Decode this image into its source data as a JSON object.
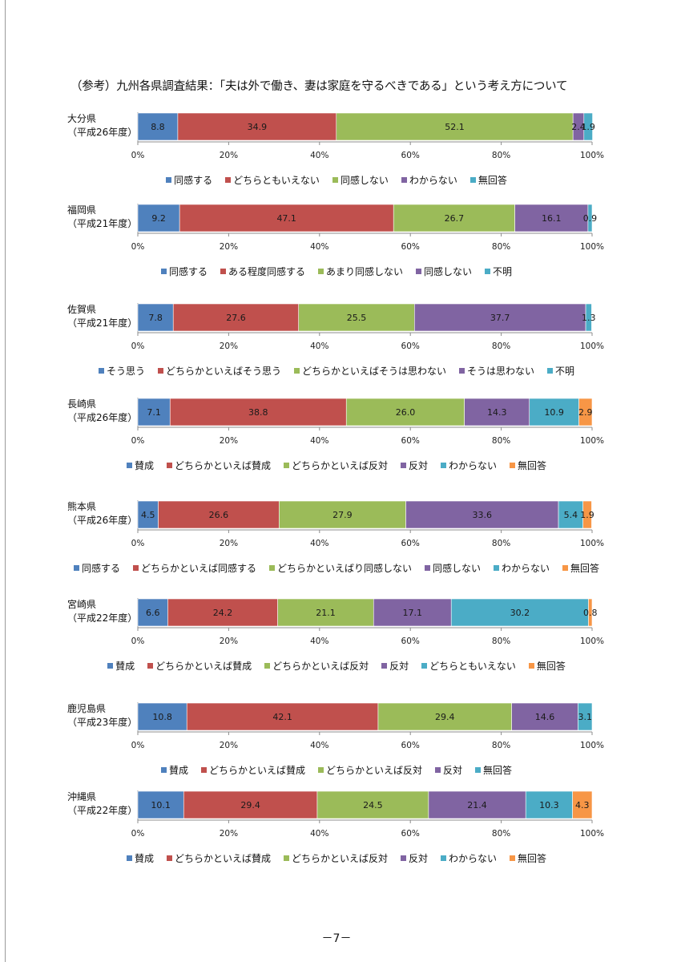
{
  "page": {
    "title": "（参考）九州各県調査結果：「夫は外で働き、妻は家庭を守るべきである」という考え方について",
    "page_number": "－7－"
  },
  "colors": {
    "c1": "#4f81bd",
    "c2": "#c0504d",
    "c3": "#9bbb59",
    "c4": "#8064a2",
    "c5": "#4bacc6",
    "c6": "#f79646"
  },
  "axis": {
    "ticks": [
      "0%",
      "20%",
      "40%",
      "60%",
      "80%",
      "100%"
    ],
    "tick_values": [
      0,
      20,
      40,
      60,
      80,
      100
    ]
  },
  "chart_data": [
    {
      "type": "bar",
      "orientation": "horizontal",
      "stacked": true,
      "prefecture": "大分県",
      "year": "（平成26年度）",
      "series": [
        {
          "name": "同感する",
          "value": 8.8,
          "label": "8.8",
          "color": "#4f81bd"
        },
        {
          "name": "どちらともいえない",
          "value": 34.9,
          "label": "34.9",
          "color": "#c0504d"
        },
        {
          "name": "同感しない",
          "value": 52.1,
          "label": "52.1",
          "color": "#9bbb59"
        },
        {
          "name": "わからない",
          "value": 2.4,
          "label": "2.4",
          "color": "#8064a2"
        },
        {
          "name": "無回答",
          "value": 1.9,
          "label": "1.9",
          "color": "#4bacc6"
        }
      ],
      "xlim": [
        0,
        100
      ],
      "legend": "bottom"
    },
    {
      "type": "bar",
      "orientation": "horizontal",
      "stacked": true,
      "prefecture": "福岡県",
      "year": "（平成21年度）",
      "series": [
        {
          "name": "同感する",
          "value": 9.2,
          "label": "9.2",
          "color": "#4f81bd"
        },
        {
          "name": "ある程度同感する",
          "value": 47.1,
          "label": "47.1",
          "color": "#c0504d"
        },
        {
          "name": "あまり同感しない",
          "value": 26.7,
          "label": "26.7",
          "color": "#9bbb59"
        },
        {
          "name": "同感しない",
          "value": 16.1,
          "label": "16.1",
          "color": "#8064a2"
        },
        {
          "name": "不明",
          "value": 0.9,
          "label": "0.9",
          "color": "#4bacc6"
        }
      ],
      "xlim": [
        0,
        100
      ],
      "legend": "bottom"
    },
    {
      "type": "bar",
      "orientation": "horizontal",
      "stacked": true,
      "prefecture": "佐賀県",
      "year": "（平成21年度）",
      "series": [
        {
          "name": "そう思う",
          "value": 7.8,
          "label": "7.8",
          "color": "#4f81bd"
        },
        {
          "name": "どちらかといえばそう思う",
          "value": 27.6,
          "label": "27.6",
          "color": "#c0504d"
        },
        {
          "name": "どちらかといえばそうは思わない",
          "value": 25.5,
          "label": "25.5",
          "color": "#9bbb59"
        },
        {
          "name": "そうは思わない",
          "value": 37.7,
          "label": "37.7",
          "color": "#8064a2"
        },
        {
          "name": "不明",
          "value": 1.3,
          "label": "1.3",
          "color": "#4bacc6"
        }
      ],
      "xlim": [
        0,
        100
      ],
      "legend": "bottom"
    },
    {
      "type": "bar",
      "orientation": "horizontal",
      "stacked": true,
      "prefecture": "長崎県",
      "year": "（平成26年度）",
      "series": [
        {
          "name": "賛成",
          "value": 7.1,
          "label": "7.1",
          "color": "#4f81bd"
        },
        {
          "name": "どちらかといえば賛成",
          "value": 38.8,
          "label": "38.8",
          "color": "#c0504d"
        },
        {
          "name": "どちらかといえば反対",
          "value": 26.0,
          "label": "26.0",
          "color": "#9bbb59"
        },
        {
          "name": "反対",
          "value": 14.3,
          "label": "14.3",
          "color": "#8064a2"
        },
        {
          "name": "わからない",
          "value": 10.9,
          "label": "10.9",
          "color": "#4bacc6"
        },
        {
          "name": "無回答",
          "value": 2.9,
          "label": "2.9",
          "color": "#f79646"
        }
      ],
      "xlim": [
        0,
        100
      ],
      "legend": "bottom"
    },
    {
      "type": "bar",
      "orientation": "horizontal",
      "stacked": true,
      "prefecture": "熊本県",
      "year": "（平成26年度）",
      "series": [
        {
          "name": "同感する",
          "value": 4.5,
          "label": "4.5",
          "color": "#4f81bd"
        },
        {
          "name": "どちらかといえば同感する",
          "value": 26.6,
          "label": "26.6",
          "color": "#c0504d"
        },
        {
          "name": "どちらかといえばり同感しない",
          "value": 27.9,
          "label": "27.9",
          "color": "#9bbb59"
        },
        {
          "name": "同感しない",
          "value": 33.6,
          "label": "33.6",
          "color": "#8064a2"
        },
        {
          "name": "わからない",
          "value": 5.4,
          "label": "5.4",
          "color": "#4bacc6"
        },
        {
          "name": "無回答",
          "value": 1.9,
          "label": "1.9",
          "color": "#f79646"
        }
      ],
      "xlim": [
        0,
        100
      ],
      "legend": "bottom"
    },
    {
      "type": "bar",
      "orientation": "horizontal",
      "stacked": true,
      "prefecture": "宮崎県",
      "year": "（平成22年度）",
      "series": [
        {
          "name": "賛成",
          "value": 6.6,
          "label": "6.6",
          "color": "#4f81bd"
        },
        {
          "name": "どちらかといえば賛成",
          "value": 24.2,
          "label": "24.2",
          "color": "#c0504d"
        },
        {
          "name": "どちらかといえば反対",
          "value": 21.1,
          "label": "21.1",
          "color": "#9bbb59"
        },
        {
          "name": "反対",
          "value": 17.1,
          "label": "17.1",
          "color": "#8064a2"
        },
        {
          "name": "どちらともいえない",
          "value": 30.2,
          "label": "30.2",
          "color": "#4bacc6"
        },
        {
          "name": "無回答",
          "value": 0.8,
          "label": "0.8",
          "color": "#f79646"
        }
      ],
      "xlim": [
        0,
        100
      ],
      "legend": "bottom"
    },
    {
      "type": "bar",
      "orientation": "horizontal",
      "stacked": true,
      "prefecture": "鹿児島県",
      "year": "（平成23年度）",
      "series": [
        {
          "name": "賛成",
          "value": 10.8,
          "label": "10.8",
          "color": "#4f81bd"
        },
        {
          "name": "どちらかといえば賛成",
          "value": 42.1,
          "label": "42.1",
          "color": "#c0504d"
        },
        {
          "name": "どちらかといえば反対",
          "value": 29.4,
          "label": "29.4",
          "color": "#9bbb59"
        },
        {
          "name": "反対",
          "value": 14.6,
          "label": "14.6",
          "color": "#8064a2"
        },
        {
          "name": "無回答",
          "value": 3.1,
          "label": "3.1",
          "color": "#4bacc6"
        }
      ],
      "xlim": [
        0,
        100
      ],
      "legend": "bottom"
    },
    {
      "type": "bar",
      "orientation": "horizontal",
      "stacked": true,
      "prefecture": "沖縄県",
      "year": "（平成22年度）",
      "series": [
        {
          "name": "賛成",
          "value": 10.1,
          "label": "10.1",
          "color": "#4f81bd"
        },
        {
          "name": "どちらかといえば賛成",
          "value": 29.4,
          "label": "29.4",
          "color": "#c0504d"
        },
        {
          "name": "どちらかといえば反対",
          "value": 24.5,
          "label": "24.5",
          "color": "#9bbb59"
        },
        {
          "name": "反対",
          "value": 21.4,
          "label": "21.4",
          "color": "#8064a2"
        },
        {
          "name": "わからない",
          "value": 10.3,
          "label": "10.3",
          "color": "#4bacc6"
        },
        {
          "name": "無回答",
          "value": 4.3,
          "label": "4.3",
          "color": "#f79646"
        }
      ],
      "xlim": [
        0,
        100
      ],
      "legend": "bottom"
    }
  ]
}
